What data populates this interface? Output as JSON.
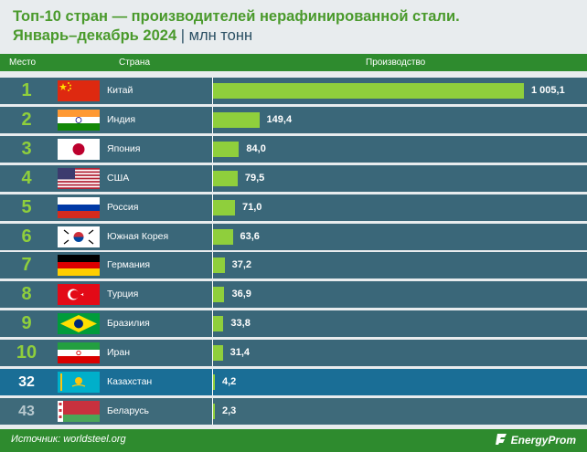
{
  "title": {
    "line1": "Топ-10 стран — производителей нерафинированной стали.",
    "line2": "Январь–декабрь 2024",
    "separator": "|",
    "unit": "млн тонн"
  },
  "header": {
    "col_rank": "Место",
    "col_country": "Страна",
    "col_value": "Производство"
  },
  "chart_data": {
    "type": "bar",
    "orientation": "horizontal",
    "title": "Топ-10 стран — производителей нерафинированной стали. Январь–декабрь 2024 | млн тонн",
    "categories": [
      "Китай",
      "Индия",
      "Япония",
      "США",
      "Россия",
      "Южная Корея",
      "Германия",
      "Турция",
      "Бразилия",
      "Иран",
      "Казахстан",
      "Беларусь"
    ],
    "values": [
      1005.1,
      149.4,
      84.0,
      79.5,
      71.0,
      63.6,
      37.2,
      36.9,
      33.8,
      31.4,
      4.2,
      2.3
    ],
    "rows": [
      {
        "rank": "1",
        "country": "Китай",
        "value": 1005.1,
        "label": "1 005,1",
        "flag": "china-flag-icon"
      },
      {
        "rank": "2",
        "country": "Индия",
        "value": 149.4,
        "label": "149,4",
        "flag": "india-flag-icon"
      },
      {
        "rank": "3",
        "country": "Япония",
        "value": 84.0,
        "label": "84,0",
        "flag": "japan-flag-icon"
      },
      {
        "rank": "4",
        "country": "США",
        "value": 79.5,
        "label": "79,5",
        "flag": "usa-flag-icon"
      },
      {
        "rank": "5",
        "country": "Россия",
        "value": 71.0,
        "label": "71,0",
        "flag": "russia-flag-icon"
      },
      {
        "rank": "6",
        "country": "Южная Корея",
        "value": 63.6,
        "label": "63,6",
        "flag": "south-korea-flag-icon"
      },
      {
        "rank": "7",
        "country": "Германия",
        "value": 37.2,
        "label": "37,2",
        "flag": "germany-flag-icon"
      },
      {
        "rank": "8",
        "country": "Турция",
        "value": 36.9,
        "label": "36,9",
        "flag": "turkey-flag-icon"
      },
      {
        "rank": "9",
        "country": "Бразилия",
        "value": 33.8,
        "label": "33,8",
        "flag": "brazil-flag-icon"
      },
      {
        "rank": "10",
        "country": "Иран",
        "value": 31.4,
        "label": "31,4",
        "flag": "iran-flag-icon"
      },
      {
        "rank": "32",
        "country": "Казахстан",
        "value": 4.2,
        "label": "4,2",
        "flag": "kazakhstan-flag-icon"
      },
      {
        "rank": "43",
        "country": "Беларусь",
        "value": 2.3,
        "label": "2,3",
        "flag": "belarus-flag-icon"
      }
    ],
    "highlight": "Казахстан",
    "xlim": [
      0,
      1005.1
    ]
  },
  "footer": {
    "source": "Источник: worldsteel.org",
    "brand": "EnergyProm"
  },
  "colors": {
    "header_green": "#2e8b2e",
    "bar_green": "#8fcf3c",
    "row_bg": "#3a6779",
    "highlight_row": "#1a6e96",
    "title_green": "#4a9a2c"
  }
}
